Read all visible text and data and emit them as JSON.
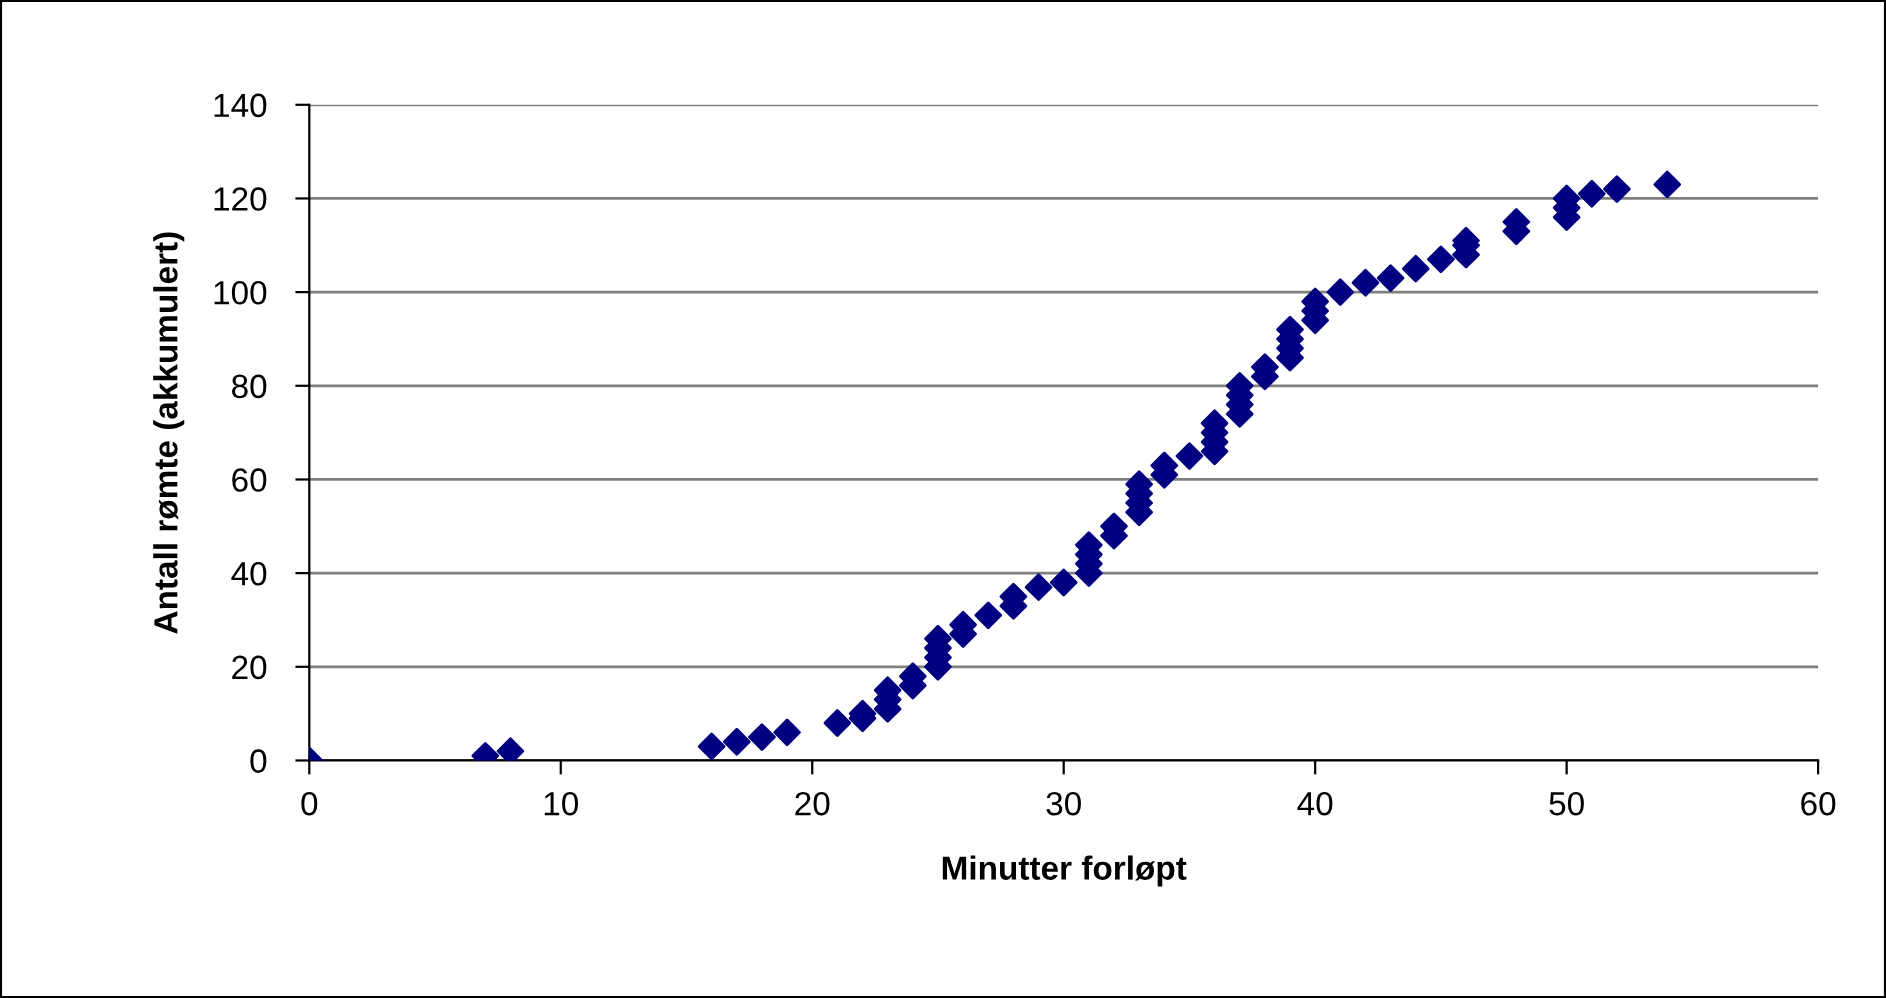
{
  "chart_data": {
    "type": "scatter",
    "xlabel": "Minutter forløpt",
    "ylabel": "Antall rømte (akkumulert)",
    "series": [
      {
        "color": "#000080",
        "x": [
          0,
          7,
          8,
          16,
          17,
          18,
          19,
          21,
          22,
          22,
          23,
          23,
          23,
          24,
          24,
          25,
          25,
          25,
          25,
          26,
          26,
          27,
          28,
          28,
          29,
          30,
          31,
          31,
          31,
          31,
          32,
          32,
          33,
          33,
          33,
          33,
          34,
          34,
          35,
          36,
          36,
          36,
          36,
          37,
          37,
          37,
          37,
          38,
          38,
          39,
          39,
          39,
          39,
          40,
          40,
          40,
          41,
          42,
          43,
          44,
          45,
          46,
          46,
          46,
          48,
          48,
          50,
          50,
          50,
          51,
          52,
          54
        ],
        "values": [
          0,
          1,
          2,
          3,
          4,
          5,
          6,
          8,
          9,
          10,
          11,
          13,
          15,
          16,
          18,
          20,
          22,
          24,
          26,
          27,
          29,
          31,
          33,
          35,
          37,
          38,
          40,
          42,
          44,
          46,
          48,
          50,
          53,
          55,
          57,
          59,
          61,
          63,
          65,
          66,
          68,
          70,
          72,
          74,
          76,
          78,
          80,
          82,
          84,
          86,
          88,
          90,
          92,
          94,
          96,
          98,
          100,
          102,
          103,
          105,
          107,
          108,
          110,
          111,
          113,
          115,
          116,
          118,
          120,
          121,
          122,
          123
        ]
      }
    ],
    "xlim": [
      0,
      60
    ],
    "xticks": [
      0,
      10,
      20,
      30,
      40,
      50,
      60
    ],
    "ylim": [
      0,
      140
    ],
    "yticks": [
      0,
      20,
      40,
      60,
      80,
      100,
      120,
      140
    ],
    "grid": "y",
    "marker": "diamond",
    "legend": false
  }
}
